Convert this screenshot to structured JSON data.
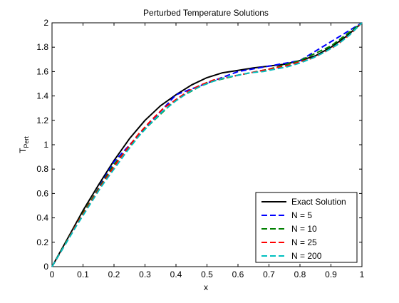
{
  "chart_data": {
    "type": "line",
    "title": "Perturbed Temperature Solutions",
    "xlabel": "x",
    "ylabel": "T",
    "ylabel_subscript": "Pert",
    "xlim": [
      0,
      1
    ],
    "ylim": [
      0,
      2
    ],
    "xticks": [
      0,
      0.1,
      0.2,
      0.3,
      0.4,
      0.5,
      0.6,
      0.7,
      0.8,
      0.9,
      1
    ],
    "yticks": [
      0,
      0.2,
      0.4,
      0.6,
      0.8,
      1,
      1.2,
      1.4,
      1.6,
      1.8,
      2
    ],
    "xtick_labels": [
      "0",
      "0.1",
      "0.2",
      "0.3",
      "0.4",
      "0.5",
      "0.6",
      "0.7",
      "0.8",
      "0.9",
      "1"
    ],
    "ytick_labels": [
      "0",
      "0.2",
      "0.4",
      "0.6",
      "0.8",
      "1",
      "1.2",
      "1.4",
      "1.6",
      "1.8",
      "2"
    ],
    "grid": false,
    "legend_position": "bottom-right",
    "series": [
      {
        "name": "Exact Solution",
        "color": "#000000",
        "style": "solid",
        "x": [
          0,
          0.05,
          0.1,
          0.15,
          0.2,
          0.25,
          0.3,
          0.35,
          0.4,
          0.45,
          0.5,
          0.55,
          0.6,
          0.65,
          0.7,
          0.75,
          0.8,
          0.85,
          0.9,
          0.95,
          1
        ],
        "y": [
          0,
          0.23,
          0.46,
          0.67,
          0.87,
          1.05,
          1.2,
          1.32,
          1.41,
          1.49,
          1.55,
          1.59,
          1.61,
          1.63,
          1.645,
          1.66,
          1.69,
          1.73,
          1.8,
          1.89,
          2.0
        ]
      },
      {
        "name": "N = 5",
        "color": "#0000ff",
        "style": "dashed",
        "x": [
          0,
          0.2,
          0.4,
          0.6,
          0.8,
          1
        ],
        "y": [
          0,
          0.86,
          1.41,
          1.6,
          1.69,
          2.0
        ]
      },
      {
        "name": "N = 10",
        "color": "#008000",
        "style": "dashed",
        "x": [
          0,
          0.1,
          0.2,
          0.3,
          0.4,
          0.5,
          0.6,
          0.7,
          0.8,
          0.9,
          1
        ],
        "y": [
          0,
          0.44,
          0.84,
          1.13,
          1.37,
          1.51,
          1.57,
          1.62,
          1.69,
          1.81,
          2.0
        ]
      },
      {
        "name": "N = 25",
        "color": "#ff0000",
        "style": "dashed",
        "x": [
          0,
          0.04,
          0.08,
          0.12,
          0.16,
          0.2,
          0.24,
          0.28,
          0.32,
          0.36,
          0.4,
          0.44,
          0.48,
          0.52,
          0.56,
          0.6,
          0.64,
          0.68,
          0.72,
          0.76,
          0.8,
          0.84,
          0.88,
          0.92,
          0.96,
          1
        ],
        "y": [
          0,
          0.17,
          0.35,
          0.51,
          0.67,
          0.82,
          0.96,
          1.09,
          1.2,
          1.3,
          1.37,
          1.44,
          1.49,
          1.53,
          1.55,
          1.57,
          1.59,
          1.61,
          1.63,
          1.65,
          1.68,
          1.71,
          1.76,
          1.82,
          1.9,
          2.0
        ]
      },
      {
        "name": "N = 200",
        "color": "#00bfbf",
        "style": "dashed",
        "x": [
          0,
          0.04,
          0.08,
          0.12,
          0.16,
          0.2,
          0.24,
          0.28,
          0.32,
          0.36,
          0.4,
          0.44,
          0.48,
          0.52,
          0.56,
          0.6,
          0.64,
          0.68,
          0.72,
          0.76,
          0.8,
          0.84,
          0.88,
          0.92,
          0.96,
          1
        ],
        "y": [
          0,
          0.17,
          0.34,
          0.5,
          0.66,
          0.8,
          0.94,
          1.07,
          1.18,
          1.28,
          1.36,
          1.43,
          1.48,
          1.52,
          1.55,
          1.57,
          1.59,
          1.6,
          1.62,
          1.64,
          1.67,
          1.71,
          1.76,
          1.82,
          1.9,
          2.0
        ]
      }
    ]
  }
}
